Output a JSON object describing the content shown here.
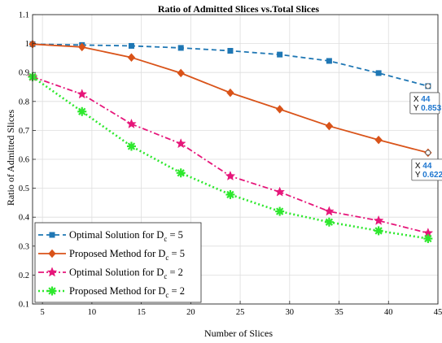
{
  "chart_data": {
    "type": "line",
    "title": "Ratio of Admitted Slices vs.Total Slices",
    "xlabel": "Number of Slices",
    "ylabel": "Ratio of  Admitted Slices",
    "xlim": [
      4,
      45
    ],
    "ylim": [
      0.1,
      1.1
    ],
    "x_ticks": [
      5,
      10,
      15,
      20,
      25,
      30,
      35,
      40,
      45
    ],
    "y_ticks": [
      0.1,
      0.2,
      0.3,
      0.4,
      0.5,
      0.6,
      0.7,
      0.8,
      0.9,
      1,
      1.1
    ],
    "grid": true,
    "legend_position": "bottom-left",
    "series": [
      {
        "name": "Optimal Solution for D_c = 5",
        "legend_main": "Optimal Solution for D",
        "legend_sub": "c",
        "legend_tail": " = 5",
        "color": "#1f77b4",
        "line_style": "dashed",
        "marker": "square",
        "x": [
          4,
          9,
          14,
          19,
          24,
          29,
          34,
          39,
          44
        ],
        "y": [
          0.998,
          0.995,
          0.992,
          0.985,
          0.975,
          0.962,
          0.94,
          0.898,
          0.853
        ]
      },
      {
        "name": "Proposed Method for D_c = 5",
        "legend_main": "Proposed Method for D",
        "legend_sub": "c",
        "legend_tail": " = 5",
        "color": "#d95319",
        "line_style": "solid",
        "marker": "diamond",
        "x": [
          4,
          9,
          14,
          19,
          24,
          29,
          34,
          39,
          44
        ],
        "y": [
          0.998,
          0.988,
          0.952,
          0.898,
          0.83,
          0.773,
          0.715,
          0.667,
          0.6228
        ]
      },
      {
        "name": "Optimal Solution for D_c = 2",
        "legend_main": "Optimal Solution for D",
        "legend_sub": "c",
        "legend_tail": " = 2",
        "color": "#e6167a",
        "line_style": "dashdot",
        "marker": "star",
        "x": [
          4,
          9,
          14,
          19,
          24,
          29,
          34,
          39,
          44
        ],
        "y": [
          0.885,
          0.825,
          0.722,
          0.654,
          0.542,
          0.487,
          0.42,
          0.388,
          0.345
        ]
      },
      {
        "name": "Proposed Method for D_c = 2",
        "legend_main": "Proposed Method for D",
        "legend_sub": "c",
        "legend_tail": " = 2",
        "color": "#2ee82e",
        "line_style": "dotted",
        "marker": "asterisk",
        "x": [
          4,
          9,
          14,
          19,
          24,
          29,
          34,
          39,
          44
        ],
        "y": [
          0.885,
          0.765,
          0.645,
          0.553,
          0.478,
          0.42,
          0.383,
          0.353,
          0.326
        ]
      }
    ],
    "datatips": [
      {
        "x_label": "X",
        "x_value": "44",
        "y_label": "Y",
        "y_value": "0.853",
        "series_index": 0
      },
      {
        "x_label": "X",
        "x_value": "44",
        "y_label": "Y",
        "y_value": "0.6228",
        "series_index": 1
      }
    ]
  }
}
